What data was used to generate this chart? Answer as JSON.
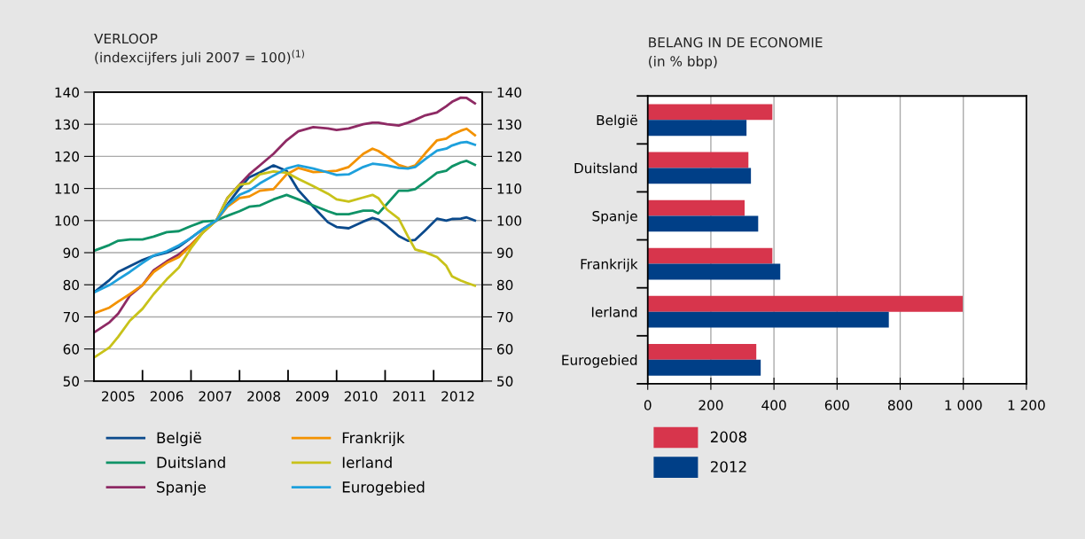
{
  "chart_data": [
    {
      "type": "line",
      "title": "VERLOOP",
      "subtitle": "(indexcijfers juli 2007 = 100)$^{(1)}$",
      "x": [
        2005.0,
        2005.32,
        2005.5,
        2005.74,
        2006.0,
        2006.23,
        2006.5,
        2006.75,
        2007.0,
        2007.25,
        2007.52,
        2007.75,
        2008.0,
        2008.2,
        2008.42,
        2008.7,
        2008.97,
        2009.21,
        2009.52,
        2009.82,
        2010.0,
        2010.25,
        2010.55,
        2010.74,
        2010.86,
        2011.04,
        2011.28,
        2011.47,
        2011.62,
        2011.83,
        2012.07,
        2012.26,
        2012.38,
        2012.56,
        2012.68,
        2012.85
      ],
      "series": [
        {
          "name": "België",
          "color": "#0b4a8c",
          "values": [
            77.6,
            81.5,
            84,
            85.8,
            87.7,
            89,
            90,
            91.8,
            94.6,
            97.4,
            100,
            105,
            110,
            113.5,
            115,
            117.2,
            115.5,
            109.5,
            104.3,
            99.5,
            98,
            97.6,
            99.7,
            100.8,
            100.3,
            98.3,
            95.2,
            93.7,
            94,
            97,
            100.6,
            100,
            100.5,
            100.6,
            101,
            100
          ]
        },
        {
          "name": "Duitsland",
          "color": "#0f9367",
          "values": [
            90.6,
            92.4,
            93.7,
            94.1,
            94.1,
            95,
            96.4,
            96.7,
            98.3,
            99.7,
            100,
            101.5,
            102.9,
            104.3,
            104.7,
            106.6,
            108,
            106.6,
            104.7,
            102.9,
            102,
            102,
            103.1,
            103.1,
            102.2,
            105.2,
            109.3,
            109.3,
            109.8,
            112.1,
            114.9,
            115.5,
            116.9,
            118.1,
            118.6,
            117.4
          ]
        },
        {
          "name": "Spanje",
          "color": "#8e2a64",
          "values": [
            65.1,
            68.3,
            71,
            76.6,
            79.9,
            84.5,
            87.3,
            89.5,
            92.5,
            96.4,
            100,
            107,
            111.2,
            114.4,
            117.2,
            120.8,
            125,
            127.8,
            129.1,
            128.7,
            128.2,
            128.7,
            130,
            130.5,
            130.5,
            130,
            129.6,
            130.5,
            131.4,
            132.8,
            133.7,
            135.6,
            137,
            138.3,
            138.2,
            136.5
          ]
        },
        {
          "name": "Frankrijk",
          "color": "#f39200",
          "values": [
            71.1,
            72.9,
            74.8,
            77.1,
            79.9,
            84,
            86.8,
            88.6,
            92.3,
            96.4,
            100,
            104.3,
            107,
            107.5,
            109.3,
            109.8,
            114.4,
            116.4,
            115.1,
            115.3,
            115.5,
            116.7,
            120.8,
            122.4,
            121.7,
            119.9,
            117.3,
            116.4,
            117.2,
            121,
            125,
            125.5,
            126.8,
            128,
            128.6,
            126.6
          ]
        },
        {
          "name": "Ierland",
          "color": "#c8c21a",
          "values": [
            57.3,
            60.5,
            63.8,
            68.8,
            72.5,
            77.1,
            81.7,
            85.4,
            91.4,
            96.4,
            100,
            107,
            111.2,
            111.6,
            114.4,
            115.3,
            114.9,
            113,
            110.7,
            108.4,
            106.6,
            105.9,
            107.2,
            108,
            107,
            103.4,
            100.6,
            95.1,
            91,
            90.1,
            88.6,
            85.9,
            82.6,
            81.3,
            80.6,
            79.7
          ]
        },
        {
          "name": "Eurogebied",
          "color": "#1ea0dc",
          "values": [
            77.6,
            79.9,
            81.7,
            84,
            86.8,
            89.1,
            90.4,
            92.3,
            94.6,
            97.4,
            100,
            104.7,
            108,
            109.3,
            111.6,
            114,
            116.2,
            117.2,
            116.2,
            115,
            114.2,
            114.4,
            116.7,
            117.7,
            117.5,
            117.2,
            116.4,
            116.2,
            116.7,
            119.2,
            121.8,
            122.4,
            123.4,
            124.3,
            124.5,
            123.6
          ]
        }
      ],
      "xlim": [
        2005,
        2013
      ],
      "xticks": [
        {
          "value": 2005.5,
          "label": "2005"
        },
        {
          "value": 2006.5,
          "label": "2006"
        },
        {
          "value": 2007.5,
          "label": "2007"
        },
        {
          "value": 2008.5,
          "label": "2008"
        },
        {
          "value": 2009.5,
          "label": "2009"
        },
        {
          "value": 2010.5,
          "label": "2010"
        },
        {
          "value": 2011.5,
          "label": "2011"
        },
        {
          "value": 2012.5,
          "label": "2012"
        },
        {
          "value": 2006,
          "label": null
        },
        {
          "value": 2007,
          "label": null
        },
        {
          "value": 2008,
          "label": null
        },
        {
          "value": 2009,
          "label": null
        },
        {
          "value": 2010,
          "label": null
        },
        {
          "value": 2011,
          "label": null
        },
        {
          "value": 2012,
          "label": null
        }
      ],
      "ylim": [
        50,
        140
      ],
      "yticks": [
        50,
        60,
        70,
        80,
        90,
        100,
        110,
        120,
        130,
        140
      ],
      "y2lim": [
        50,
        140
      ],
      "y2ticks": [
        50,
        60,
        70,
        80,
        90,
        100,
        110,
        120,
        130,
        140
      ],
      "grid": "y",
      "legend": "bottom",
      "marker": "none",
      "line_style": "solid"
    },
    {
      "type": "bar",
      "orientation": "horizontal",
      "title": "BELANG IN DE ECONOMIE",
      "subtitle": "(in % bbp)",
      "categories": [
        "België",
        "Duitsland",
        "Spanje",
        "Frankrijk",
        "Ierland",
        "Eurogebied"
      ],
      "series": [
        {
          "name": "2008",
          "color": "#d7354c",
          "values": [
            395,
            319,
            307,
            395,
            998,
            344
          ]
        },
        {
          "name": "2012",
          "color": "#003f87",
          "values": [
            313,
            327,
            350,
            420,
            764,
            358
          ]
        }
      ],
      "xlim": [
        0,
        1200
      ],
      "xticks": [
        0,
        200,
        400,
        600,
        800,
        {
          "value": 1000,
          "label": "1 000"
        },
        {
          "value": 1200,
          "label": "1 200"
        }
      ],
      "grid": "x",
      "legend": "bottom"
    }
  ]
}
